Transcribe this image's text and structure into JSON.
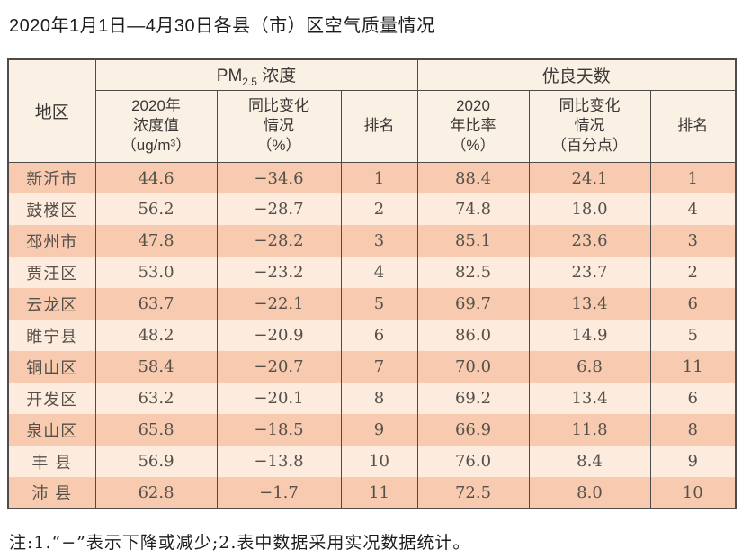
{
  "title": "2020年1月1日—4月30日各县（市）区空气质量情况",
  "note": "注:1.“−”表示下降或减少;2.表中数据采用实况数据统计。",
  "colors": {
    "row_odd": "#f8cbb0",
    "row_even": "#fdebde",
    "header_bg": "#faf0e4",
    "border": "#4c4c4c"
  },
  "table": {
    "region_header": "地区",
    "group1": {
      "prefix": "PM",
      "subscript": "2.5",
      "suffix": " 浓度"
    },
    "group2": "优良天数",
    "subheaders": [
      "2020年\n浓度值\n（ug/m³）",
      "同比变化\n情况\n（%）",
      "排名",
      "2020\n年比率\n（%）",
      "同比变化\n情况\n（百分点）",
      "排名"
    ],
    "rows": [
      {
        "region": "新沂市",
        "values": [
          "44.6",
          "−34.6",
          "1",
          "88.4",
          "24.1",
          "1"
        ]
      },
      {
        "region": "鼓楼区",
        "values": [
          "56.2",
          "−28.7",
          "2",
          "74.8",
          "18.0",
          "4"
        ]
      },
      {
        "region": "邳州市",
        "values": [
          "47.8",
          "−28.2",
          "3",
          "85.1",
          "23.6",
          "3"
        ]
      },
      {
        "region": "贾汪区",
        "values": [
          "53.0",
          "−23.2",
          "4",
          "82.5",
          "23.7",
          "2"
        ]
      },
      {
        "region": "云龙区",
        "values": [
          "63.7",
          "−22.1",
          "5",
          "69.7",
          "13.4",
          "6"
        ]
      },
      {
        "region": "睢宁县",
        "values": [
          "48.2",
          "−20.9",
          "6",
          "86.0",
          "14.9",
          "5"
        ]
      },
      {
        "region": "铜山区",
        "values": [
          "58.4",
          "−20.7",
          "7",
          "70.0",
          "6.8",
          "11"
        ]
      },
      {
        "region": "开发区",
        "values": [
          "63.2",
          "−20.1",
          "8",
          "69.2",
          "13.4",
          "6"
        ]
      },
      {
        "region": "泉山区",
        "values": [
          "65.8",
          "−18.5",
          "9",
          "66.9",
          "11.8",
          "8"
        ]
      },
      {
        "region": "丰 县",
        "values": [
          "56.9",
          "−13.8",
          "10",
          "76.0",
          "8.4",
          "9"
        ]
      },
      {
        "region": "沛 县",
        "values": [
          "62.8",
          "−1.7",
          "11",
          "72.5",
          "8.0",
          "10"
        ]
      }
    ]
  }
}
